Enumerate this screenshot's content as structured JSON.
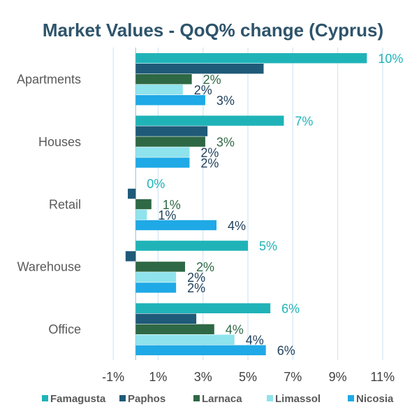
{
  "chart_data": {
    "type": "bar",
    "orientation": "horizontal",
    "title": "Market Values - QoQ% change (Cyprus)",
    "xlabel": "",
    "ylabel": "",
    "xlim": [
      -2,
      12
    ],
    "ticks": [
      -1,
      1,
      3,
      5,
      7,
      9,
      11
    ],
    "tick_labels": [
      "-1%",
      "1%",
      "3%",
      "5%",
      "7%",
      "9%",
      "11%"
    ],
    "grid": true,
    "legend_position": "bottom",
    "categories": [
      "Apartments",
      "Houses",
      "Retail",
      "Warehouse",
      "Office"
    ],
    "series": [
      {
        "name": "Famagusta",
        "color": "#1fb3b8",
        "label_color": "#1fb3b8",
        "values": [
          10.3,
          6.6,
          0.0,
          5.0,
          6.0
        ],
        "labels": [
          "10%",
          "7%",
          "0%",
          "5%",
          "6%"
        ]
      },
      {
        "name": "Paphos",
        "color": "#1f5a78",
        "label_color": "#1f5a78",
        "values": [
          5.7,
          3.2,
          -0.35,
          -0.45,
          2.7
        ],
        "labels": [
          "",
          "",
          "",
          "",
          ""
        ]
      },
      {
        "name": "Larnaca",
        "color": "#2e6844",
        "label_color": "#2e6844",
        "values": [
          2.5,
          3.1,
          0.7,
          2.2,
          3.5
        ],
        "labels": [
          "2%",
          "3%",
          "1%",
          "2%",
          "4%"
        ]
      },
      {
        "name": "Limassol",
        "color": "#8fe3ec",
        "label_color": "#1f3f5a",
        "values": [
          2.1,
          2.4,
          0.5,
          1.8,
          4.4
        ],
        "labels": [
          "2%",
          "2%",
          "1%",
          "2%",
          "4%"
        ]
      },
      {
        "name": "Nicosia",
        "color": "#1fa9e6",
        "label_color": "#1f3f5a",
        "values": [
          3.1,
          2.4,
          3.6,
          1.8,
          5.8
        ],
        "labels": [
          "3%",
          "2%",
          "4%",
          "2%",
          "6%"
        ]
      }
    ],
    "negative_tick_color": "#c00000"
  }
}
